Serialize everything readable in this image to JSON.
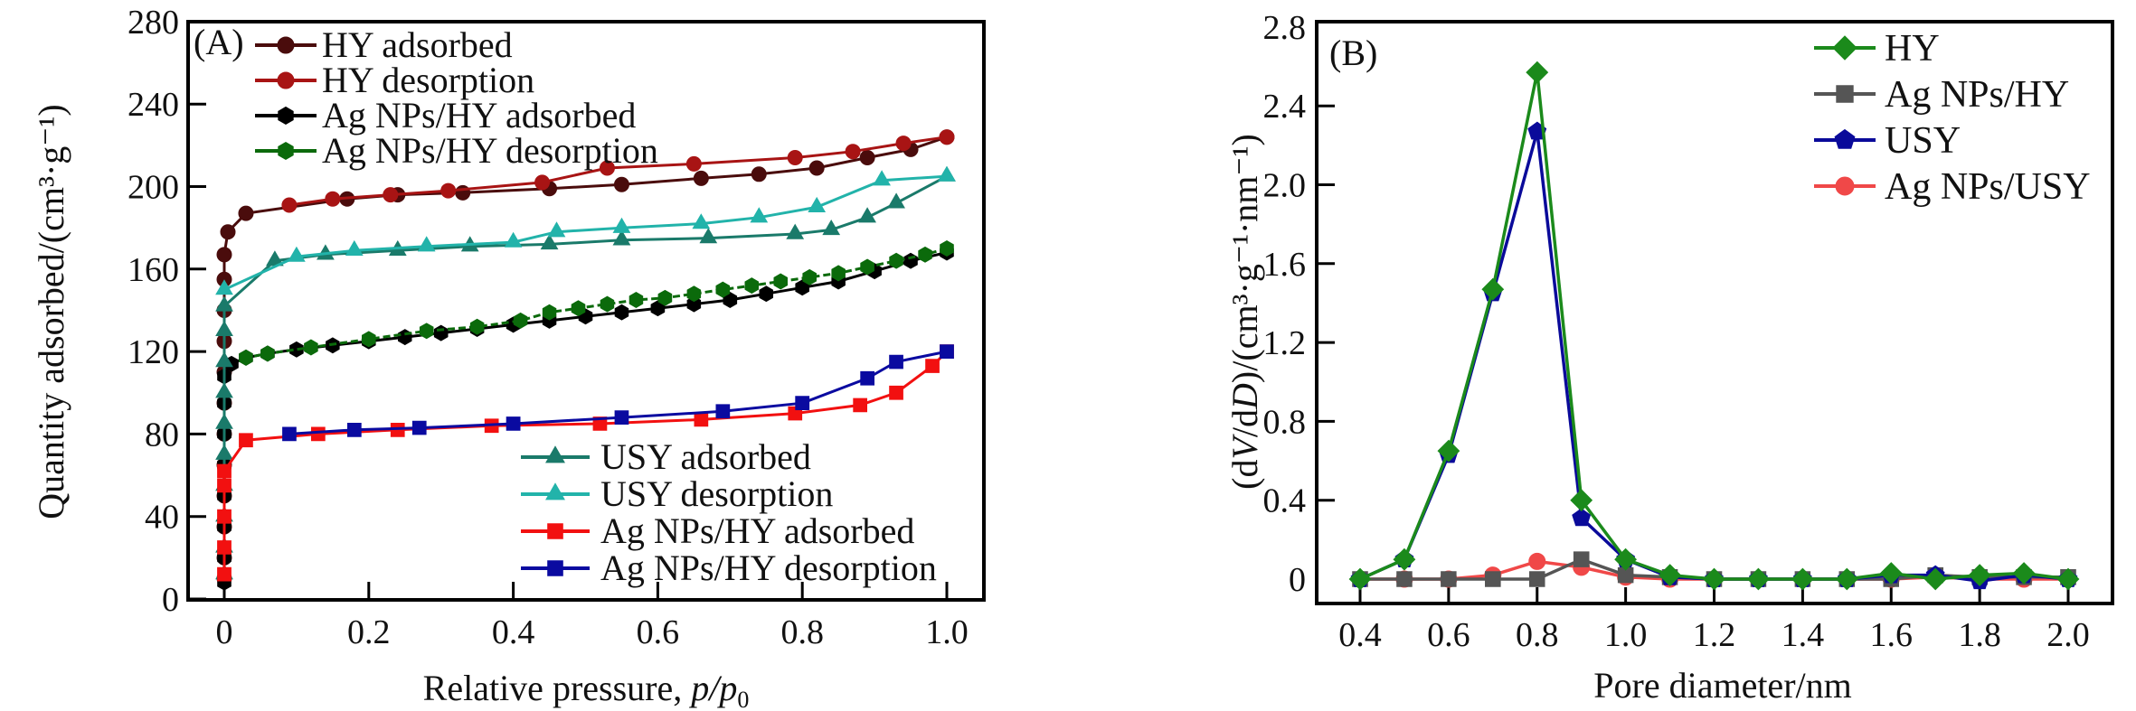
{
  "chart_data": [
    {
      "type": "line",
      "panel_label": "(A)",
      "xlabel": "Relative pressure, ",
      "xlabel_italic": "p/p",
      "xlabel_sub": "0",
      "ylabel": "Quantity adsorbed/(cm³·g⁻¹)",
      "xlim": [
        0,
        1.0
      ],
      "ylim": [
        0,
        280
      ],
      "xticks": [
        0,
        0.2,
        0.4,
        0.6,
        0.8,
        1.0
      ],
      "xtick_labels": [
        "0",
        "0.2",
        "0.4",
        "0.6",
        "0.8",
        "1.0"
      ],
      "yticks": [
        0,
        40,
        80,
        120,
        160,
        200,
        240,
        280
      ],
      "ytick_labels": [
        "0",
        "40",
        "80",
        "120",
        "160",
        "200",
        "240",
        "280"
      ],
      "grid": false,
      "legend_placement": [
        "top-left",
        "bottom-right"
      ],
      "series": [
        {
          "name": "HY adsorbed",
          "color": "#4a0c0c",
          "marker": "circle",
          "legend_group": 0,
          "points": [
            [
              0,
              10
            ],
            [
              0,
              20
            ],
            [
              0,
              35
            ],
            [
              0,
              50
            ],
            [
              0,
              65
            ],
            [
              0,
              80
            ],
            [
              0,
              95
            ],
            [
              0,
              110
            ],
            [
              0,
              125
            ],
            [
              0,
              140
            ],
            [
              0,
              155
            ],
            [
              0,
              167
            ],
            [
              0.005,
              178
            ],
            [
              0.03,
              187
            ],
            [
              0.17,
              194
            ],
            [
              0.24,
              196
            ],
            [
              0.33,
              197
            ],
            [
              0.45,
              199
            ],
            [
              0.55,
              201
            ],
            [
              0.66,
              204
            ],
            [
              0.74,
              206
            ],
            [
              0.82,
              209
            ],
            [
              0.89,
              214
            ],
            [
              0.95,
              218
            ],
            [
              1.0,
              224
            ]
          ]
        },
        {
          "name": "HY desorption",
          "color": "#a81414",
          "marker": "circle",
          "legend_group": 0,
          "points": [
            [
              1.0,
              224
            ],
            [
              0.94,
              221
            ],
            [
              0.87,
              217
            ],
            [
              0.79,
              214
            ],
            [
              0.65,
              211
            ],
            [
              0.53,
              209
            ],
            [
              0.44,
              202
            ],
            [
              0.31,
              198
            ],
            [
              0.23,
              196
            ],
            [
              0.15,
              194
            ],
            [
              0.09,
              191
            ]
          ]
        },
        {
          "name": "Ag NPs/HY adsorbed",
          "color": "#000000",
          "marker": "hexagon",
          "legend_group": 0,
          "points": [
            [
              0,
              8
            ],
            [
              0,
              20
            ],
            [
              0,
              35
            ],
            [
              0,
              50
            ],
            [
              0,
              65
            ],
            [
              0,
              80
            ],
            [
              0,
              95
            ],
            [
              0,
              108
            ],
            [
              0.01,
              114
            ],
            [
              0.03,
              117
            ],
            [
              0.06,
              119
            ],
            [
              0.1,
              121
            ],
            [
              0.15,
              123
            ],
            [
              0.2,
              125
            ],
            [
              0.25,
              127
            ],
            [
              0.3,
              129
            ],
            [
              0.35,
              131
            ],
            [
              0.4,
              133
            ],
            [
              0.45,
              135
            ],
            [
              0.5,
              137
            ],
            [
              0.55,
              139
            ],
            [
              0.6,
              141
            ],
            [
              0.65,
              143
            ],
            [
              0.7,
              145
            ],
            [
              0.75,
              148
            ],
            [
              0.8,
              151
            ],
            [
              0.85,
              154
            ],
            [
              0.9,
              159
            ],
            [
              0.95,
              164
            ],
            [
              1.0,
              168
            ]
          ]
        },
        {
          "name": "Ag NPs/HY desorption",
          "color": "#0b6a0b",
          "marker": "hexagon",
          "legend_group": 0,
          "points": [
            [
              1.0,
              170
            ],
            [
              0.97,
              167
            ],
            [
              0.93,
              164
            ],
            [
              0.89,
              161
            ],
            [
              0.85,
              158
            ],
            [
              0.81,
              156
            ],
            [
              0.77,
              154
            ],
            [
              0.73,
              152
            ],
            [
              0.69,
              150
            ],
            [
              0.65,
              148
            ],
            [
              0.61,
              146
            ],
            [
              0.57,
              145
            ],
            [
              0.53,
              143
            ],
            [
              0.49,
              141
            ],
            [
              0.45,
              139
            ],
            [
              0.41,
              135
            ],
            [
              0.35,
              132
            ],
            [
              0.28,
              130
            ],
            [
              0.2,
              126
            ],
            [
              0.12,
              122
            ],
            [
              0.06,
              119
            ],
            [
              0.03,
              117
            ]
          ]
        },
        {
          "name": "USY adsorbed",
          "color": "#1a7a6a",
          "marker": "triangle",
          "legend_group": 1,
          "points": [
            [
              0,
              12
            ],
            [
              0,
              25
            ],
            [
              0,
              40
            ],
            [
              0,
              55
            ],
            [
              0,
              70
            ],
            [
              0,
              85
            ],
            [
              0,
              100
            ],
            [
              0,
              115
            ],
            [
              0,
              130
            ],
            [
              0,
              142
            ],
            [
              0.07,
              164
            ],
            [
              0.14,
              167
            ],
            [
              0.24,
              169
            ],
            [
              0.34,
              171
            ],
            [
              0.45,
              172
            ],
            [
              0.55,
              174
            ],
            [
              0.67,
              175
            ],
            [
              0.79,
              177
            ],
            [
              0.84,
              179
            ],
            [
              0.89,
              185
            ],
            [
              0.93,
              192
            ],
            [
              1.0,
              205
            ]
          ]
        },
        {
          "name": "USY desorption",
          "color": "#22b3aa",
          "marker": "triangle",
          "legend_group": 1,
          "points": [
            [
              1.0,
              205
            ],
            [
              0.91,
              203
            ],
            [
              0.82,
              190
            ],
            [
              0.74,
              185
            ],
            [
              0.66,
              182
            ],
            [
              0.55,
              180
            ],
            [
              0.46,
              178
            ],
            [
              0.4,
              173
            ],
            [
              0.28,
              171
            ],
            [
              0.18,
              169
            ],
            [
              0.1,
              166
            ],
            [
              0.0,
              150
            ]
          ]
        },
        {
          "name": "Ag NPs/HY adsorbed",
          "color": "#f21010",
          "marker": "square",
          "legend_group": 1,
          "points": [
            [
              0,
              12
            ],
            [
              0,
              25
            ],
            [
              0,
              40
            ],
            [
              0,
              55
            ],
            [
              0.0,
              62
            ],
            [
              0.03,
              77
            ],
            [
              0.13,
              80
            ],
            [
              0.24,
              82
            ],
            [
              0.37,
              84
            ],
            [
              0.52,
              85
            ],
            [
              0.66,
              87
            ],
            [
              0.79,
              90
            ],
            [
              0.88,
              94
            ],
            [
              0.93,
              100
            ],
            [
              0.98,
              113
            ],
            [
              1.0,
              120
            ]
          ]
        },
        {
          "name": "Ag NPs/HY desorption",
          "color": "#0a0aa0",
          "marker": "square",
          "legend_group": 1,
          "points": [
            [
              1.0,
              120
            ],
            [
              0.93,
              115
            ],
            [
              0.89,
              107
            ],
            [
              0.8,
              95
            ],
            [
              0.69,
              91
            ],
            [
              0.55,
              88
            ],
            [
              0.4,
              85
            ],
            [
              0.27,
              83
            ],
            [
              0.18,
              82
            ],
            [
              0.09,
              80
            ]
          ]
        }
      ]
    },
    {
      "type": "line",
      "panel_label": "(B)",
      "xlabel": "Pore diameter/nm",
      "ylabel": "(dV/dD)/(cm³·g⁻¹·nm⁻¹)",
      "xlim": [
        0.35,
        2.05
      ],
      "ylim": [
        -0.1,
        2.8
      ],
      "xticks": [
        0.4,
        0.6,
        0.8,
        1.0,
        1.2,
        1.4,
        1.6,
        1.8,
        2.0
      ],
      "xtick_labels": [
        "0.4",
        "0.6",
        "0.8",
        "1.0",
        "1.2",
        "1.4",
        "1.6",
        "1.8",
        "2.0"
      ],
      "yticks": [
        0,
        0.4,
        0.8,
        1.2,
        1.6,
        2.0,
        2.4,
        2.8
      ],
      "ytick_labels": [
        "0",
        "0.4",
        "0.8",
        "1.2",
        "1.6",
        "2.0",
        "2.4",
        "2.8"
      ],
      "grid": false,
      "legend_placement": "top-right",
      "x": [
        0.4,
        0.5,
        0.6,
        0.7,
        0.8,
        0.9,
        1.0,
        1.1,
        1.2,
        1.3,
        1.4,
        1.5,
        1.6,
        1.7,
        1.8,
        1.9,
        2.0
      ],
      "series": [
        {
          "name": "HY",
          "color": "#1b8a1b",
          "marker": "diamond",
          "values": [
            0,
            0.1,
            0.65,
            1.47,
            2.57,
            0.4,
            0.1,
            0.02,
            0,
            0,
            0,
            0,
            0.03,
            0,
            0.02,
            0.03,
            0
          ]
        },
        {
          "name": "Ag NPs/HY",
          "color": "#555555",
          "marker": "square",
          "values": [
            0,
            0,
            0,
            0,
            0,
            0.1,
            0.02,
            0.01,
            0,
            0,
            0,
            0,
            0,
            0.02,
            0.01,
            0.01,
            0.01
          ]
        },
        {
          "name": "USY",
          "color": "#0a0a9a",
          "marker": "pentagon",
          "values": [
            0,
            0.1,
            0.63,
            1.45,
            2.27,
            0.31,
            0.1,
            0.01,
            0,
            0,
            0,
            0,
            0.02,
            0.02,
            -0.01,
            0.02,
            0
          ]
        },
        {
          "name": "Ag NPs/USY",
          "color": "#f04848",
          "marker": "circle",
          "values": [
            0,
            0,
            0,
            0.02,
            0.09,
            0.06,
            0.01,
            0,
            0,
            0,
            0,
            0,
            0,
            0.01,
            0,
            0,
            0
          ]
        }
      ]
    }
  ]
}
